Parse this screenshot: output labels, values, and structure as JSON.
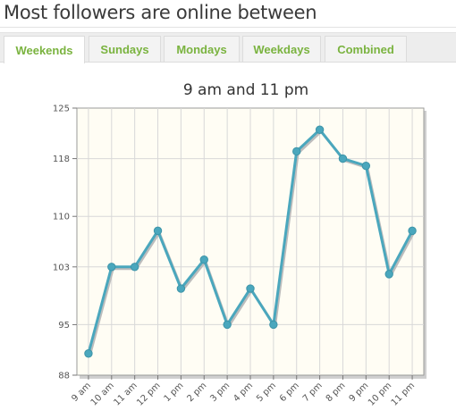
{
  "page": {
    "heading": "Most followers are online between"
  },
  "tabs": [
    {
      "label": "Weekends",
      "active": true
    },
    {
      "label": "Sundays",
      "active": false
    },
    {
      "label": "Mondays",
      "active": false
    },
    {
      "label": "Weekdays",
      "active": false
    },
    {
      "label": "Combined",
      "active": false
    }
  ],
  "colors": {
    "accent": "#7ab33f",
    "line": "#4aa7bd",
    "plot_bg": "#fffdf4",
    "grid": "#d8d8d8"
  },
  "chart_data": {
    "type": "line",
    "title": "9 am and 11 pm",
    "xlabel": "",
    "ylabel": "",
    "categories": [
      "9 am",
      "10 am",
      "11 am",
      "12 pm",
      "1 pm",
      "2 pm",
      "3 pm",
      "4 pm",
      "5 pm",
      "6 pm",
      "7 pm",
      "8 pm",
      "9 pm",
      "10 pm",
      "11 pm"
    ],
    "values": [
      91,
      103,
      103,
      108,
      100,
      104,
      95,
      100,
      95,
      119,
      122,
      118,
      117,
      102,
      108
    ],
    "ylim": [
      88,
      125
    ],
    "yticks": [
      88,
      95,
      103,
      110,
      118,
      125
    ],
    "grid": true,
    "legend": "none"
  }
}
